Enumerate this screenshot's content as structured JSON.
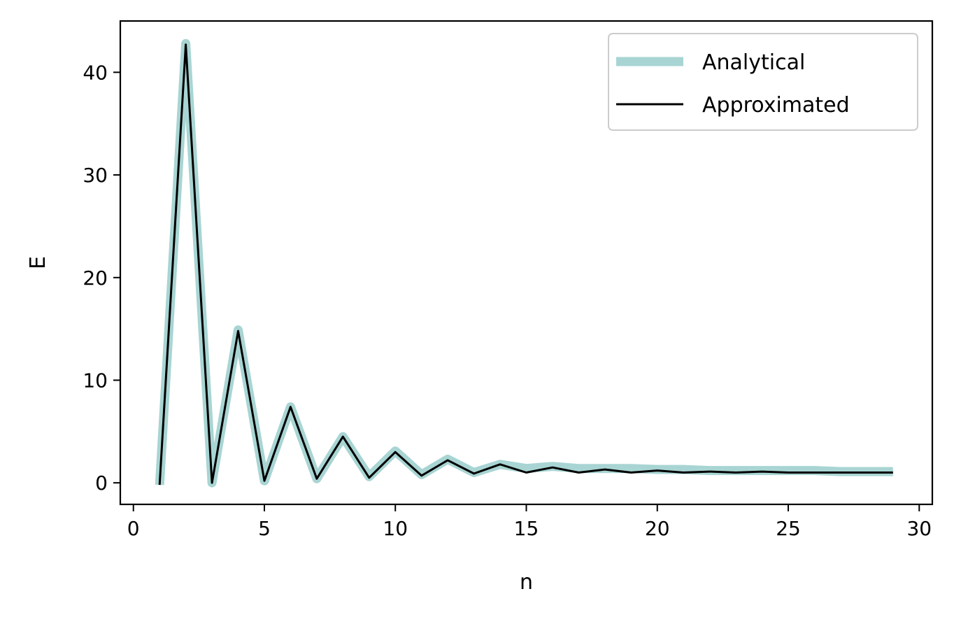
{
  "chart_data": {
    "type": "line",
    "title": "",
    "xlabel": "n",
    "ylabel": "E",
    "xlim": [
      -0.5,
      30.5
    ],
    "ylim": [
      -2.1,
      45
    ],
    "xticks": [
      0,
      5,
      10,
      15,
      20,
      25,
      30
    ],
    "yticks": [
      0,
      10,
      20,
      30,
      40
    ],
    "grid": false,
    "legend": {
      "position": "top-right"
    },
    "x": [
      1,
      2,
      3,
      4,
      5,
      6,
      7,
      8,
      9,
      10,
      11,
      12,
      13,
      14,
      15,
      16,
      17,
      18,
      19,
      20,
      21,
      22,
      23,
      24,
      25,
      26,
      27,
      28,
      29
    ],
    "series": [
      {
        "name": "Analytical",
        "color": "#a8d5d3",
        "values": [
          -0.2,
          42.8,
          0.0,
          14.9,
          0.2,
          7.4,
          0.4,
          4.5,
          0.6,
          3.1,
          0.8,
          2.3,
          1.0,
          1.8,
          1.4,
          1.6,
          1.4,
          1.4,
          1.4,
          1.3,
          1.3,
          1.2,
          1.2,
          1.2,
          1.2,
          1.2,
          1.1,
          1.1,
          1.1
        ]
      },
      {
        "name": "Approximated",
        "color": "#000000",
        "values": [
          -0.2,
          42.7,
          0.0,
          14.8,
          0.2,
          7.4,
          0.4,
          4.5,
          0.5,
          3.0,
          0.7,
          2.2,
          0.9,
          1.8,
          1.0,
          1.5,
          1.0,
          1.3,
          1.0,
          1.2,
          1.0,
          1.1,
          1.0,
          1.1,
          1.0,
          1.0,
          1.0,
          1.0,
          1.0
        ]
      }
    ]
  }
}
